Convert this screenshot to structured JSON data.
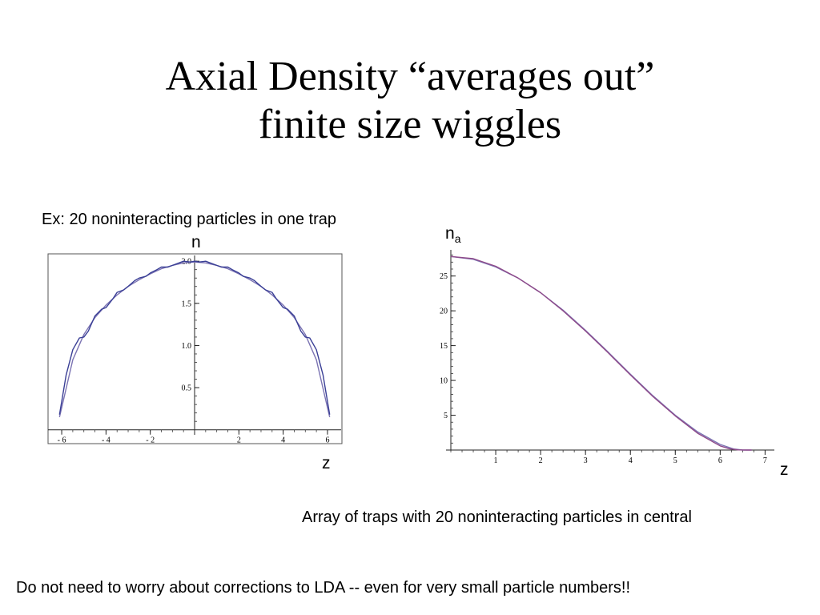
{
  "slide": {
    "title_line1": "Axial Density “averages out”",
    "title_line2": "finite size wiggles",
    "caption_left": "Ex: 20 noninteracting particles in one trap",
    "caption_right": "Array of traps with 20 noninteracting particles in central",
    "footer": "Do not need to worry about corrections to LDA -- even for very small particle numbers!!"
  },
  "chart_data": [
    {
      "type": "line",
      "ylabel": "n",
      "xlabel": "z",
      "xlim": [
        -6.4,
        6.4
      ],
      "ylim": [
        -0.05,
        2.03
      ],
      "xticks": [
        -6,
        -4,
        -2,
        2,
        4,
        6
      ],
      "xtick_labels": [
        "- 6",
        "- 4",
        "- 2",
        "2",
        "4",
        "6"
      ],
      "yticks": [
        0.5,
        1.0,
        1.5,
        2.0
      ],
      "ytick_labels": [
        "0.5",
        "1.0",
        "1.5",
        "2.0"
      ],
      "frame": true,
      "colors": {
        "smooth": "#7c74b3",
        "wiggly": "#3a3f96"
      },
      "series": [
        {
          "x": [
            -6.1,
            -5.5,
            -5.0,
            -4.5,
            -4.0,
            -3.5,
            -3.0,
            -2.5,
            -2.0,
            -1.5,
            -1.0,
            -0.5,
            0,
            0.5,
            1.0,
            1.5,
            2.0,
            2.5,
            3.0,
            3.5,
            4.0,
            4.5,
            5.0,
            5.5,
            6.1
          ],
          "y": [
            0.15,
            0.83,
            1.13,
            1.33,
            1.48,
            1.6,
            1.7,
            1.78,
            1.85,
            1.91,
            1.95,
            1.98,
            1.99,
            1.98,
            1.95,
            1.91,
            1.85,
            1.78,
            1.7,
            1.6,
            1.48,
            1.33,
            1.13,
            0.83,
            0.15
          ]
        },
        {
          "x": [
            -6.1,
            -5.8,
            -5.5,
            -5.2,
            -5.0,
            -4.8,
            -4.5,
            -4.2,
            -4.0,
            -3.7,
            -3.5,
            -3.2,
            -3.0,
            -2.7,
            -2.5,
            -2.2,
            -2.0,
            -1.7,
            -1.5,
            -1.2,
            -1.0,
            -0.7,
            -0.5,
            -0.2,
            0,
            0.2,
            0.5,
            0.7,
            1.0,
            1.2,
            1.5,
            1.7,
            2.0,
            2.2,
            2.5,
            2.7,
            3.0,
            3.2,
            3.5,
            3.7,
            4.0,
            4.2,
            4.5,
            4.8,
            5.0,
            5.2,
            5.5,
            5.8,
            6.1
          ],
          "y": [
            0.18,
            0.65,
            0.95,
            1.09,
            1.1,
            1.17,
            1.35,
            1.43,
            1.45,
            1.55,
            1.63,
            1.66,
            1.7,
            1.77,
            1.8,
            1.82,
            1.86,
            1.9,
            1.93,
            1.93,
            1.95,
            1.98,
            2.0,
            1.99,
            2.0,
            1.99,
            2.0,
            1.98,
            1.95,
            1.93,
            1.93,
            1.9,
            1.86,
            1.82,
            1.8,
            1.77,
            1.7,
            1.66,
            1.63,
            1.55,
            1.45,
            1.43,
            1.35,
            1.17,
            1.1,
            1.09,
            0.95,
            0.65,
            0.18
          ]
        }
      ]
    },
    {
      "type": "line",
      "ylabel": "n",
      "ylabel_subscript": "a",
      "xlabel": "z",
      "xlim": [
        0,
        7.1
      ],
      "ylim": [
        0,
        28.3
      ],
      "xticks": [
        1,
        2,
        3,
        4,
        5,
        6,
        7
      ],
      "xtick_labels": [
        "1",
        "2",
        "3",
        "4",
        "5",
        "6",
        "7"
      ],
      "yticks": [
        5,
        10,
        15,
        20,
        25
      ],
      "ytick_labels": [
        "5",
        "10",
        "15",
        "20",
        "25"
      ],
      "frame": false,
      "colors": {
        "smooth": "#7c74b3",
        "wiggly": "#8e4a8a"
      },
      "series": [
        {
          "x": [
            0,
            0.5,
            1.0,
            1.5,
            2.0,
            2.5,
            3.0,
            3.5,
            4.0,
            4.5,
            5.0,
            5.5,
            6.0,
            6.3,
            6.5,
            6.7
          ],
          "y": [
            27.8,
            27.4,
            26.3,
            24.7,
            22.6,
            20.1,
            17.2,
            14.1,
            10.9,
            7.8,
            5.0,
            2.6,
            0.8,
            0.15,
            0.0,
            0.0
          ]
        },
        {
          "x": [
            0,
            0.5,
            1.0,
            1.5,
            2.0,
            2.5,
            3.0,
            3.5,
            4.0,
            4.5,
            5.0,
            5.5,
            6.0,
            6.2,
            6.4,
            6.6,
            6.7
          ],
          "y": [
            27.8,
            27.5,
            26.4,
            24.7,
            22.6,
            20.0,
            17.1,
            14.0,
            10.8,
            7.7,
            4.9,
            2.4,
            0.6,
            0.2,
            0.02,
            0.0,
            0.0
          ]
        }
      ]
    }
  ]
}
